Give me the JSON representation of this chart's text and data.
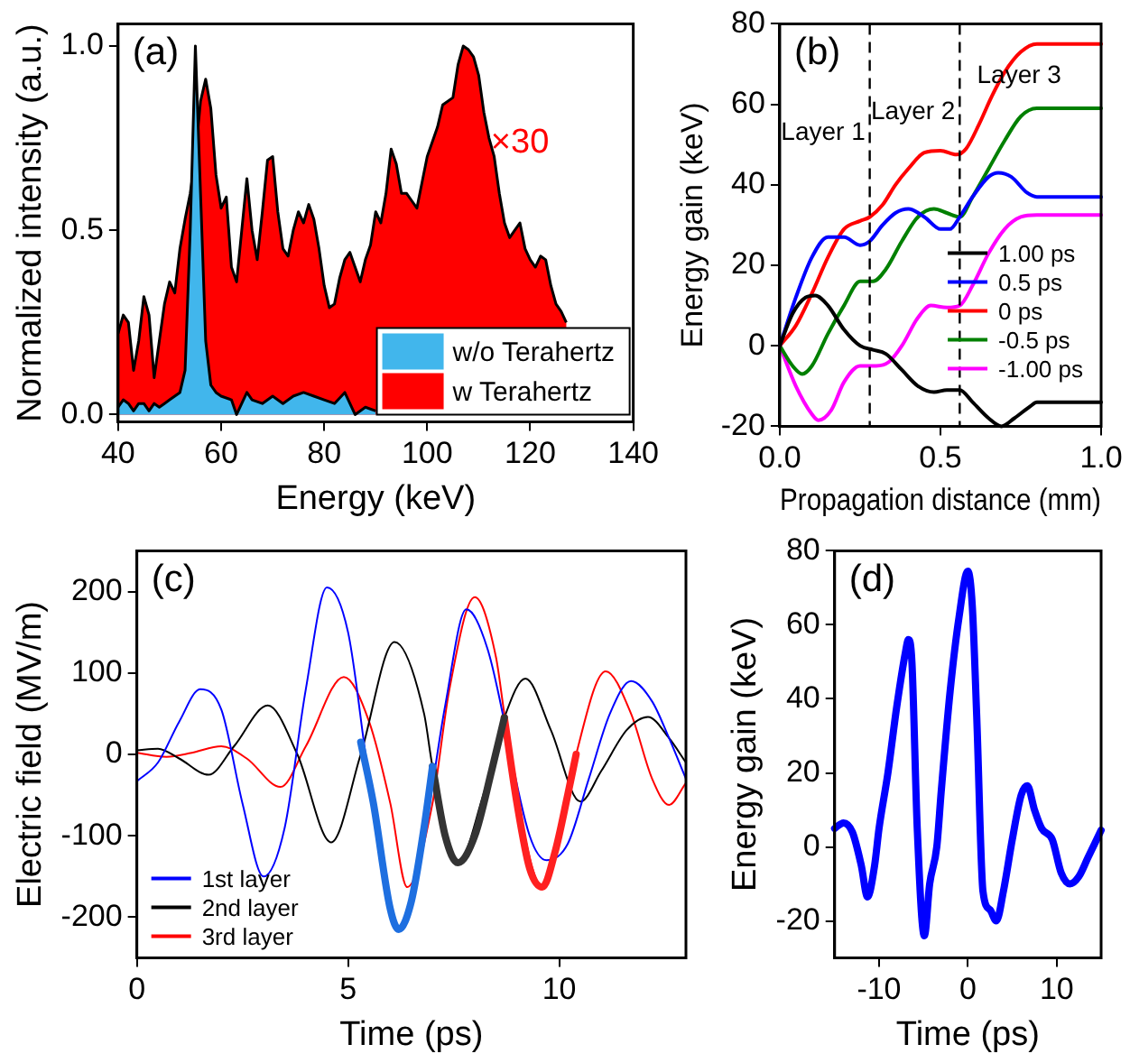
{
  "chart_data": [
    {
      "type": "area",
      "xlabel": "Energy (keV)",
      "ylabel": "Normalized intensity (a.u.)",
      "xlim": [
        40,
        140
      ],
      "xticks": [
        40,
        60,
        80,
        100,
        120,
        140
      ],
      "ylim": [
        -0.02,
        1.06
      ],
      "yticks": [
        {
          "value": 0,
          "label": "0.0"
        },
        {
          "value": 0.5,
          "label": "0.5"
        },
        {
          "value": 1,
          "label": "1.0"
        }
      ],
      "legend": "bottom right",
      "annotations": [
        "(a)",
        "×30"
      ],
      "series": [
        {
          "name": "w/o Terahertz",
          "color": "#41b6ec",
          "x": [
            40,
            41,
            42,
            43,
            44,
            45,
            46,
            47,
            48,
            49,
            50,
            51,
            52,
            53,
            54,
            55,
            56,
            57,
            58,
            59,
            60,
            62,
            63,
            64,
            65,
            66,
            68,
            70,
            72,
            74,
            76,
            78,
            80,
            82,
            84,
            85,
            86,
            88,
            90
          ],
          "values": [
            0.02,
            0.04,
            0.03,
            0.01,
            0.03,
            0.03,
            0.01,
            0.03,
            0.02,
            0.03,
            0.04,
            0.05,
            0.06,
            0.12,
            0.5,
            1.0,
            0.6,
            0.2,
            0.08,
            0.06,
            0.05,
            0.04,
            0.0,
            0.03,
            0.06,
            0.04,
            0.03,
            0.05,
            0.03,
            0.05,
            0.06,
            0.05,
            0.04,
            0.03,
            0.06,
            0.03,
            0.0,
            0.02,
            0.01
          ]
        },
        {
          "name": "w Terahertz",
          "color": "#ff0000",
          "x": [
            40,
            41,
            42,
            43,
            44,
            45,
            46,
            47,
            48,
            49,
            50,
            51,
            52,
            53,
            54,
            55,
            56,
            57,
            58,
            59,
            60,
            61,
            62,
            63,
            64,
            65,
            66,
            67,
            68,
            69,
            70,
            71,
            72,
            73,
            74,
            75,
            76,
            77,
            78,
            79,
            80,
            81,
            82,
            83,
            84,
            85,
            86,
            87,
            88,
            89,
            90,
            91,
            92,
            93,
            94,
            95,
            96,
            97,
            98,
            99,
            100,
            102,
            103,
            105,
            106,
            107,
            108,
            109,
            110,
            111,
            112,
            113,
            114,
            115,
            116,
            117,
            118,
            119,
            120,
            121,
            122,
            123,
            124,
            125,
            126,
            127
          ],
          "values": [
            0.22,
            0.27,
            0.25,
            0.12,
            0.2,
            0.32,
            0.27,
            0.1,
            0.2,
            0.3,
            0.36,
            0.33,
            0.45,
            0.53,
            0.6,
            0.7,
            0.85,
            0.91,
            0.83,
            0.65,
            0.56,
            0.59,
            0.4,
            0.36,
            0.5,
            0.64,
            0.5,
            0.42,
            0.55,
            0.69,
            0.7,
            0.55,
            0.45,
            0.43,
            0.5,
            0.55,
            0.52,
            0.57,
            0.53,
            0.45,
            0.35,
            0.29,
            0.3,
            0.37,
            0.42,
            0.44,
            0.4,
            0.36,
            0.42,
            0.46,
            0.55,
            0.52,
            0.6,
            0.72,
            0.68,
            0.6,
            0.6,
            0.58,
            0.56,
            0.63,
            0.7,
            0.78,
            0.84,
            0.86,
            0.95,
            1.0,
            0.99,
            0.97,
            0.92,
            0.82,
            0.75,
            0.7,
            0.6,
            0.52,
            0.48,
            0.5,
            0.52,
            0.45,
            0.42,
            0.4,
            0.43,
            0.42,
            0.35,
            0.3,
            0.28,
            0.25
          ]
        }
      ]
    },
    {
      "type": "line",
      "xlabel": "Propagation distance (mm)",
      "ylabel": "Energy gain (keV)",
      "xlim": [
        0,
        1
      ],
      "xticks": [
        {
          "value": 0,
          "label": "0.0"
        },
        {
          "value": 0.5,
          "label": "0.5"
        },
        {
          "value": 1,
          "label": "1.0"
        }
      ],
      "ylim": [
        -20,
        80
      ],
      "yticks": [
        -20,
        0,
        20,
        40,
        60,
        80
      ],
      "legend": "bottom right",
      "annotations": [
        "(b)",
        "Layer 1",
        "Layer 2",
        "Layer 3"
      ],
      "ref_lines": [
        {
          "axis": "x",
          "value": 0.28,
          "line_style": "dashed"
        },
        {
          "axis": "x",
          "value": 0.56,
          "line_style": "dashed"
        }
      ],
      "series": [
        {
          "name": "1.00 ps",
          "color": "#000000",
          "x": [
            0,
            0.04,
            0.08,
            0.11,
            0.15,
            0.2,
            0.25,
            0.29,
            0.33,
            0.38,
            0.43,
            0.48,
            0.52,
            0.56,
            0.6,
            0.65,
            0.69,
            0.73,
            0.78,
            0.8,
            1.0
          ],
          "values": [
            0,
            8,
            12,
            12.5,
            10,
            4,
            0,
            -1,
            -2,
            -6,
            -10,
            -11.5,
            -11,
            -11,
            -14,
            -18,
            -20,
            -18,
            -15,
            -14,
            -14
          ]
        },
        {
          "name": "0.5 ps",
          "color": "#0000ff",
          "x": [
            0,
            0.05,
            0.1,
            0.15,
            0.2,
            0.25,
            0.28,
            0.32,
            0.36,
            0.4,
            0.45,
            0.5,
            0.53,
            0.56,
            0.6,
            0.65,
            0.68,
            0.72,
            0.77,
            0.8,
            1.0
          ],
          "values": [
            0,
            12,
            22,
            27,
            27,
            25,
            26,
            30,
            33,
            34,
            32,
            29,
            29,
            32,
            37,
            42,
            43,
            42,
            38,
            37,
            37
          ]
        },
        {
          "name": "0 ps",
          "color": "#ff0000",
          "x": [
            0,
            0.05,
            0.1,
            0.15,
            0.2,
            0.25,
            0.28,
            0.32,
            0.36,
            0.4,
            0.45,
            0.5,
            0.55,
            0.58,
            0.62,
            0.66,
            0.7,
            0.75,
            0.8,
            1.0
          ],
          "values": [
            0,
            5,
            13,
            22,
            29,
            31,
            32,
            35,
            40,
            44,
            48,
            48.5,
            47.5,
            49,
            55,
            62,
            68,
            73,
            75,
            75
          ]
        },
        {
          "name": "-0.5 ps",
          "color": "#008000",
          "x": [
            0,
            0.04,
            0.07,
            0.1,
            0.15,
            0.2,
            0.25,
            0.29,
            0.33,
            0.38,
            0.43,
            0.48,
            0.52,
            0.56,
            0.6,
            0.65,
            0.7,
            0.75,
            0.8,
            1.0
          ],
          "values": [
            0,
            -5,
            -7,
            -5,
            3,
            10,
            16,
            16,
            19,
            26,
            32,
            34,
            33,
            32,
            37,
            44,
            51,
            57,
            59,
            59
          ]
        },
        {
          "name": "-1.00 ps",
          "color": "#ff00ff",
          "x": [
            0,
            0.05,
            0.1,
            0.12,
            0.16,
            0.2,
            0.25,
            0.3,
            0.34,
            0.38,
            0.43,
            0.47,
            0.52,
            0.56,
            0.6,
            0.65,
            0.7,
            0.75,
            0.8,
            1.0
          ],
          "values": [
            0,
            -10,
            -17,
            -18.5,
            -16,
            -9,
            -5,
            -5,
            -4,
            0,
            7,
            10,
            9.5,
            10,
            15,
            23,
            29,
            32,
            32.5,
            32.5
          ]
        }
      ]
    },
    {
      "type": "line",
      "xlabel": "Time (ps)",
      "ylabel": "Electric field (MV/m)",
      "xlim": [
        0,
        13
      ],
      "xticks": [
        0,
        5,
        10
      ],
      "ylim": [
        -250,
        250
      ],
      "yticks": [
        -200,
        -100,
        0,
        100,
        200
      ],
      "legend": "bottom left",
      "annotations": [
        "(c)"
      ],
      "series": [
        {
          "color": "#1e6fe0",
          "x": [
            5.3,
            5.6,
            6.0,
            6.2,
            6.5,
            6.8,
            7.0
          ],
          "values": [
            15,
            -60,
            -190,
            -215,
            -180,
            -90,
            -15
          ]
        },
        {
          "color": "#333333",
          "x": [
            7.0,
            7.3,
            7.6,
            8.0,
            8.4,
            8.7
          ],
          "values": [
            -15,
            -100,
            -133,
            -100,
            -20,
            45
          ]
        },
        {
          "color": "#ff2020",
          "x": [
            8.7,
            9.0,
            9.3,
            9.6,
            9.9,
            10.2,
            10.4
          ],
          "values": [
            45,
            -60,
            -140,
            -163,
            -120,
            -50,
            0
          ]
        },
        {
          "name": "1st layer",
          "color": "#0000ff",
          "x": [
            0,
            0.5,
            1.0,
            1.5,
            2.0,
            2.5,
            3.0,
            3.5,
            4.0,
            4.5,
            5.0,
            5.5,
            6.2,
            6.8,
            7.3,
            7.8,
            8.3,
            9.3,
            9.7,
            10.2,
            10.7,
            11.2,
            11.7,
            12.2,
            12.6,
            13
          ],
          "values": [
            -33,
            -10,
            40,
            80,
            55,
            -60,
            -150,
            -90,
            80,
            205,
            150,
            -30,
            -215,
            -100,
            60,
            178,
            130,
            -100,
            -130,
            -110,
            -30,
            50,
            90,
            65,
            20,
            -30
          ]
        },
        {
          "name": "2nd layer",
          "color": "#000000",
          "x": [
            0,
            0.5,
            1.0,
            1.7,
            2.3,
            3.1,
            3.8,
            4.6,
            5.3,
            6.1,
            6.8,
            7.0,
            7.6,
            8.2,
            8.7,
            9.2,
            9.8,
            10.5,
            11.0,
            11.6,
            12.1,
            12.6,
            13
          ],
          "values": [
            5,
            7,
            -5,
            -25,
            10,
            60,
            0,
            -108,
            0,
            138,
            50,
            -15,
            -133,
            -50,
            45,
            93,
            30,
            -58,
            -20,
            30,
            46,
            20,
            -10
          ]
        },
        {
          "name": "3rd layer",
          "color": "#ff0000",
          "x": [
            0,
            0.7,
            1.3,
            2.0,
            2.6,
            3.4,
            4.0,
            4.9,
            5.5,
            6.0,
            6.4,
            7.0,
            7.4,
            8.0,
            8.5,
            8.7,
            9.1,
            9.6,
            10.0,
            10.4,
            11.1,
            11.7,
            12.2,
            12.6,
            13
          ],
          "values": [
            2,
            -3,
            2,
            10,
            -5,
            -40,
            10,
            95,
            40,
            -60,
            -163,
            -60,
            80,
            193,
            120,
            50,
            -80,
            -163,
            -100,
            0,
            102,
            50,
            -30,
            -62,
            -35
          ]
        }
      ]
    },
    {
      "type": "line",
      "xlabel": "Time (ps)",
      "ylabel": "Energy gain (keV)",
      "xlim": [
        -15,
        15
      ],
      "xticks": [
        -10,
        0,
        10
      ],
      "ylim": [
        -30,
        80
      ],
      "yticks": [
        -20,
        0,
        20,
        40,
        60,
        80
      ],
      "annotations": [
        "(d)"
      ],
      "series": [
        {
          "color": "#0000ff",
          "x": [
            -15,
            -14,
            -13,
            -12,
            -11.3,
            -10.5,
            -10,
            -9,
            -8,
            -7,
            -6.7,
            -6.3,
            -5.7,
            -4.9,
            -4.3,
            -3.5,
            -3,
            -2,
            -1,
            0,
            0.5,
            1,
            1.7,
            2.5,
            3.2,
            4,
            5,
            6,
            6.7,
            7.5,
            8.3,
            9.5,
            10.5,
            11.5,
            12.5,
            13.5,
            15
          ],
          "values": [
            5,
            6.5,
            4,
            -5,
            -13.5,
            -5,
            5,
            20,
            38,
            53,
            56,
            50,
            5,
            -24,
            -10,
            0,
            15,
            42,
            62,
            74.5,
            65,
            35,
            -12,
            -17,
            -20,
            -12,
            2,
            14,
            16.5,
            10,
            5,
            2,
            -7,
            -10,
            -8,
            -3,
            4.5
          ]
        }
      ]
    }
  ]
}
